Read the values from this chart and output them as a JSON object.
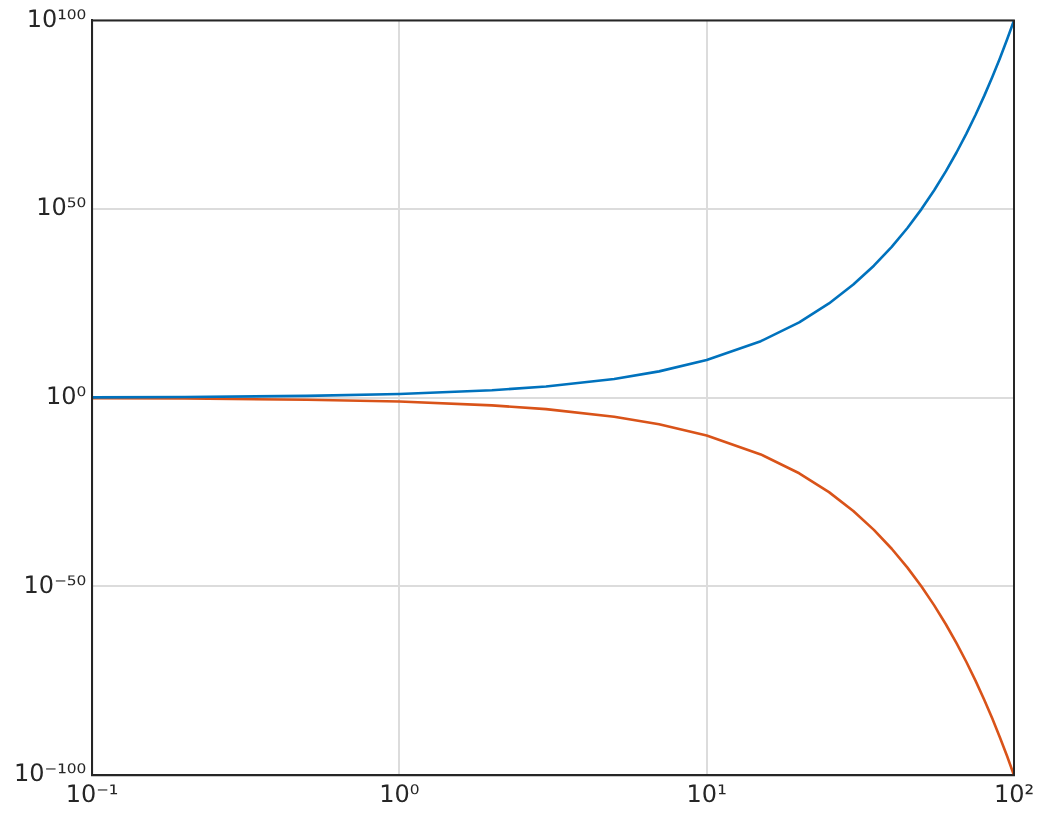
{
  "chart_data": {
    "type": "line",
    "log": "xy",
    "grid": true,
    "marker": "none",
    "line_style": "solid",
    "x": [
      0.1,
      0.2,
      0.5,
      1,
      2,
      3,
      5,
      7,
      10,
      15,
      20,
      25,
      30,
      35,
      40,
      45,
      50,
      55,
      60,
      65,
      70,
      75,
      80,
      85,
      90,
      95,
      100
    ],
    "series": [
      {
        "color": "#0072bd",
        "values": [
          1.259,
          1.585,
          3.162,
          10,
          100,
          1000.0,
          100000.0,
          10000000.0,
          10000000000.0,
          1000000000000000.0,
          1e+20,
          1e+25,
          1e+30,
          1e+35,
          1e+40,
          1e+45,
          1e+50,
          1e+55,
          1e+60,
          1e+65,
          1e+70,
          1e+75,
          1e+80,
          1e+85,
          1e+90,
          1e+95,
          1e+100
        ]
      },
      {
        "color": "#d95319",
        "values": [
          0.7943,
          0.631,
          0.3162,
          0.1,
          0.01,
          0.001,
          1e-05,
          1e-07,
          1e-10,
          1e-15,
          1e-20,
          1e-25,
          1e-30,
          1e-35,
          1e-40,
          1e-45,
          1e-50,
          1e-55,
          1e-60,
          1e-65,
          1e-70,
          1e-75,
          1e-80,
          1e-85,
          1e-90,
          1e-95,
          1e-100
        ]
      }
    ],
    "xlim": [
      0.1,
      100
    ],
    "ylim": [
      1e-100,
      1e+100
    ],
    "xticks": [
      {
        "value": 0.1,
        "label": "10⁻¹"
      },
      {
        "value": 1,
        "label": "10⁰"
      },
      {
        "value": 10,
        "label": "10¹"
      },
      {
        "value": 100,
        "label": "10²"
      }
    ],
    "yticks": [
      {
        "value": 1e-100,
        "label": "10⁻¹⁰⁰"
      },
      {
        "value": 1e-50,
        "label": "10⁻⁵⁰"
      },
      {
        "value": 1,
        "label": "10⁰"
      },
      {
        "value": 1e+50,
        "label": "10⁵⁰"
      },
      {
        "value": 1e+100,
        "label": "10¹⁰⁰"
      }
    ]
  }
}
